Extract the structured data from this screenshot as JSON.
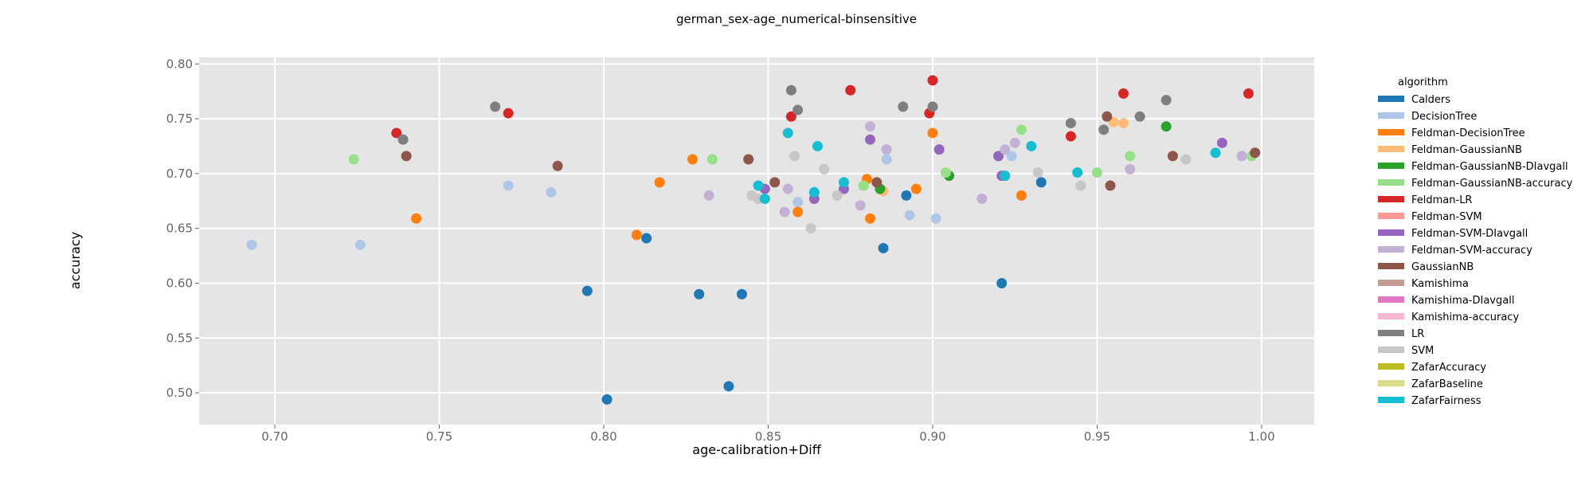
{
  "chart_data": {
    "type": "scatter",
    "title": "german_sex-age_numerical-binsensitive",
    "xlabel": "age-calibration+Diff",
    "ylabel": "accuracy",
    "xlim": [
      0.677,
      1.016
    ],
    "ylim": [
      0.471,
      0.806
    ],
    "x_ticks": [
      "0.70",
      "0.75",
      "0.80",
      "0.85",
      "0.90",
      "0.95",
      "1.00"
    ],
    "y_ticks": [
      "0.50",
      "0.55",
      "0.60",
      "0.65",
      "0.70",
      "0.75",
      "0.80"
    ],
    "grid": true,
    "legend_position": "right",
    "legend_title": "algorithm",
    "series": [
      {
        "name": "Calders",
        "color": "#1f77b4",
        "x": [
          0.801,
          0.795,
          0.813,
          0.829,
          0.842,
          0.838,
          0.885,
          0.892,
          0.921,
          0.933
        ],
        "y": [
          0.494,
          0.593,
          0.641,
          0.59,
          0.59,
          0.506,
          0.632,
          0.68,
          0.6,
          0.692
        ]
      },
      {
        "name": "DecisionTree",
        "color": "#aec7e8",
        "x": [
          0.693,
          0.726,
          0.771,
          0.784,
          0.859,
          0.886,
          0.893,
          0.901,
          0.924
        ],
        "y": [
          0.635,
          0.635,
          0.689,
          0.683,
          0.674,
          0.713,
          0.662,
          0.659,
          0.716
        ]
      },
      {
        "name": "Feldman-DecisionTree",
        "color": "#ff7f0e",
        "x": [
          0.743,
          0.81,
          0.817,
          0.827,
          0.859,
          0.88,
          0.881,
          0.895,
          0.9,
          0.927
        ],
        "y": [
          0.659,
          0.644,
          0.692,
          0.713,
          0.665,
          0.695,
          0.659,
          0.686,
          0.737,
          0.68
        ]
      },
      {
        "name": "Feldman-GaussianNB",
        "color": "#ffbb78",
        "x": [
          0.885,
          0.958,
          0.955
        ],
        "y": [
          0.684,
          0.746,
          0.747
        ]
      },
      {
        "name": "Feldman-GaussianNB-DIavgall",
        "color": "#2ca02c",
        "x": [
          0.884,
          0.905,
          0.971
        ],
        "y": [
          0.686,
          0.698,
          0.743
        ]
      },
      {
        "name": "Feldman-GaussianNB-accuracy",
        "color": "#98df8a",
        "x": [
          0.724,
          0.833,
          0.879,
          0.904,
          0.927,
          0.95,
          0.96,
          0.997
        ],
        "y": [
          0.713,
          0.713,
          0.689,
          0.701,
          0.74,
          0.701,
          0.716,
          0.716
        ]
      },
      {
        "name": "Feldman-LR",
        "color": "#d62728",
        "x": [
          0.737,
          0.771,
          0.857,
          0.875,
          0.899,
          0.9,
          0.942,
          0.958,
          0.996
        ],
        "y": [
          0.737,
          0.755,
          0.752,
          0.776,
          0.755,
          0.785,
          0.734,
          0.773,
          0.773
        ]
      },
      {
        "name": "Feldman-SVM",
        "color": "#ff9896",
        "x": [],
        "y": []
      },
      {
        "name": "Feldman-SVM-DIavgall",
        "color": "#9467bd",
        "x": [
          0.849,
          0.864,
          0.873,
          0.881,
          0.902,
          0.92,
          0.921,
          0.988
        ],
        "y": [
          0.686,
          0.677,
          0.686,
          0.731,
          0.722,
          0.716,
          0.698,
          0.728
        ]
      },
      {
        "name": "Feldman-SVM-accuracy",
        "color": "#c5b0d5",
        "x": [
          0.832,
          0.855,
          0.856,
          0.878,
          0.881,
          0.886,
          0.915,
          0.922,
          0.925,
          0.96,
          0.994
        ],
        "y": [
          0.68,
          0.665,
          0.686,
          0.671,
          0.743,
          0.722,
          0.677,
          0.722,
          0.728,
          0.704,
          0.716
        ]
      },
      {
        "name": "GaussianNB",
        "color": "#8c564b",
        "x": [
          0.74,
          0.786,
          0.844,
          0.852,
          0.883,
          0.953,
          0.954,
          0.973,
          0.998
        ],
        "y": [
          0.716,
          0.707,
          0.713,
          0.692,
          0.692,
          0.752,
          0.689,
          0.716,
          0.719
        ]
      },
      {
        "name": "Kamishima",
        "color": "#c49c94",
        "x": [],
        "y": []
      },
      {
        "name": "Kamishima-DIavgall",
        "color": "#e377c2",
        "x": [],
        "y": []
      },
      {
        "name": "Kamishima-accuracy",
        "color": "#f7b6d2",
        "x": [],
        "y": []
      },
      {
        "name": "LR",
        "color": "#7f7f7f",
        "x": [
          0.739,
          0.767,
          0.857,
          0.859,
          0.891,
          0.9,
          0.942,
          0.952,
          0.963,
          0.971
        ],
        "y": [
          0.731,
          0.761,
          0.776,
          0.758,
          0.761,
          0.761,
          0.746,
          0.74,
          0.752,
          0.767
        ]
      },
      {
        "name": "SVM",
        "color": "#c7c7c7",
        "x": [
          0.845,
          0.847,
          0.858,
          0.863,
          0.867,
          0.871,
          0.932,
          0.945,
          0.977
        ],
        "y": [
          0.68,
          0.677,
          0.716,
          0.65,
          0.704,
          0.68,
          0.701,
          0.689,
          0.713
        ]
      },
      {
        "name": "ZafarAccuracy",
        "color": "#bcbd22",
        "x": [],
        "y": []
      },
      {
        "name": "ZafarBaseline",
        "color": "#dbdb8d",
        "x": [],
        "y": []
      },
      {
        "name": "ZafarFairness",
        "color": "#17becf",
        "x": [
          0.847,
          0.849,
          0.856,
          0.864,
          0.865,
          0.873,
          0.922,
          0.93,
          0.944,
          0.986
        ],
        "y": [
          0.689,
          0.677,
          0.737,
          0.683,
          0.725,
          0.692,
          0.698,
          0.725,
          0.701,
          0.719
        ]
      }
    ]
  }
}
